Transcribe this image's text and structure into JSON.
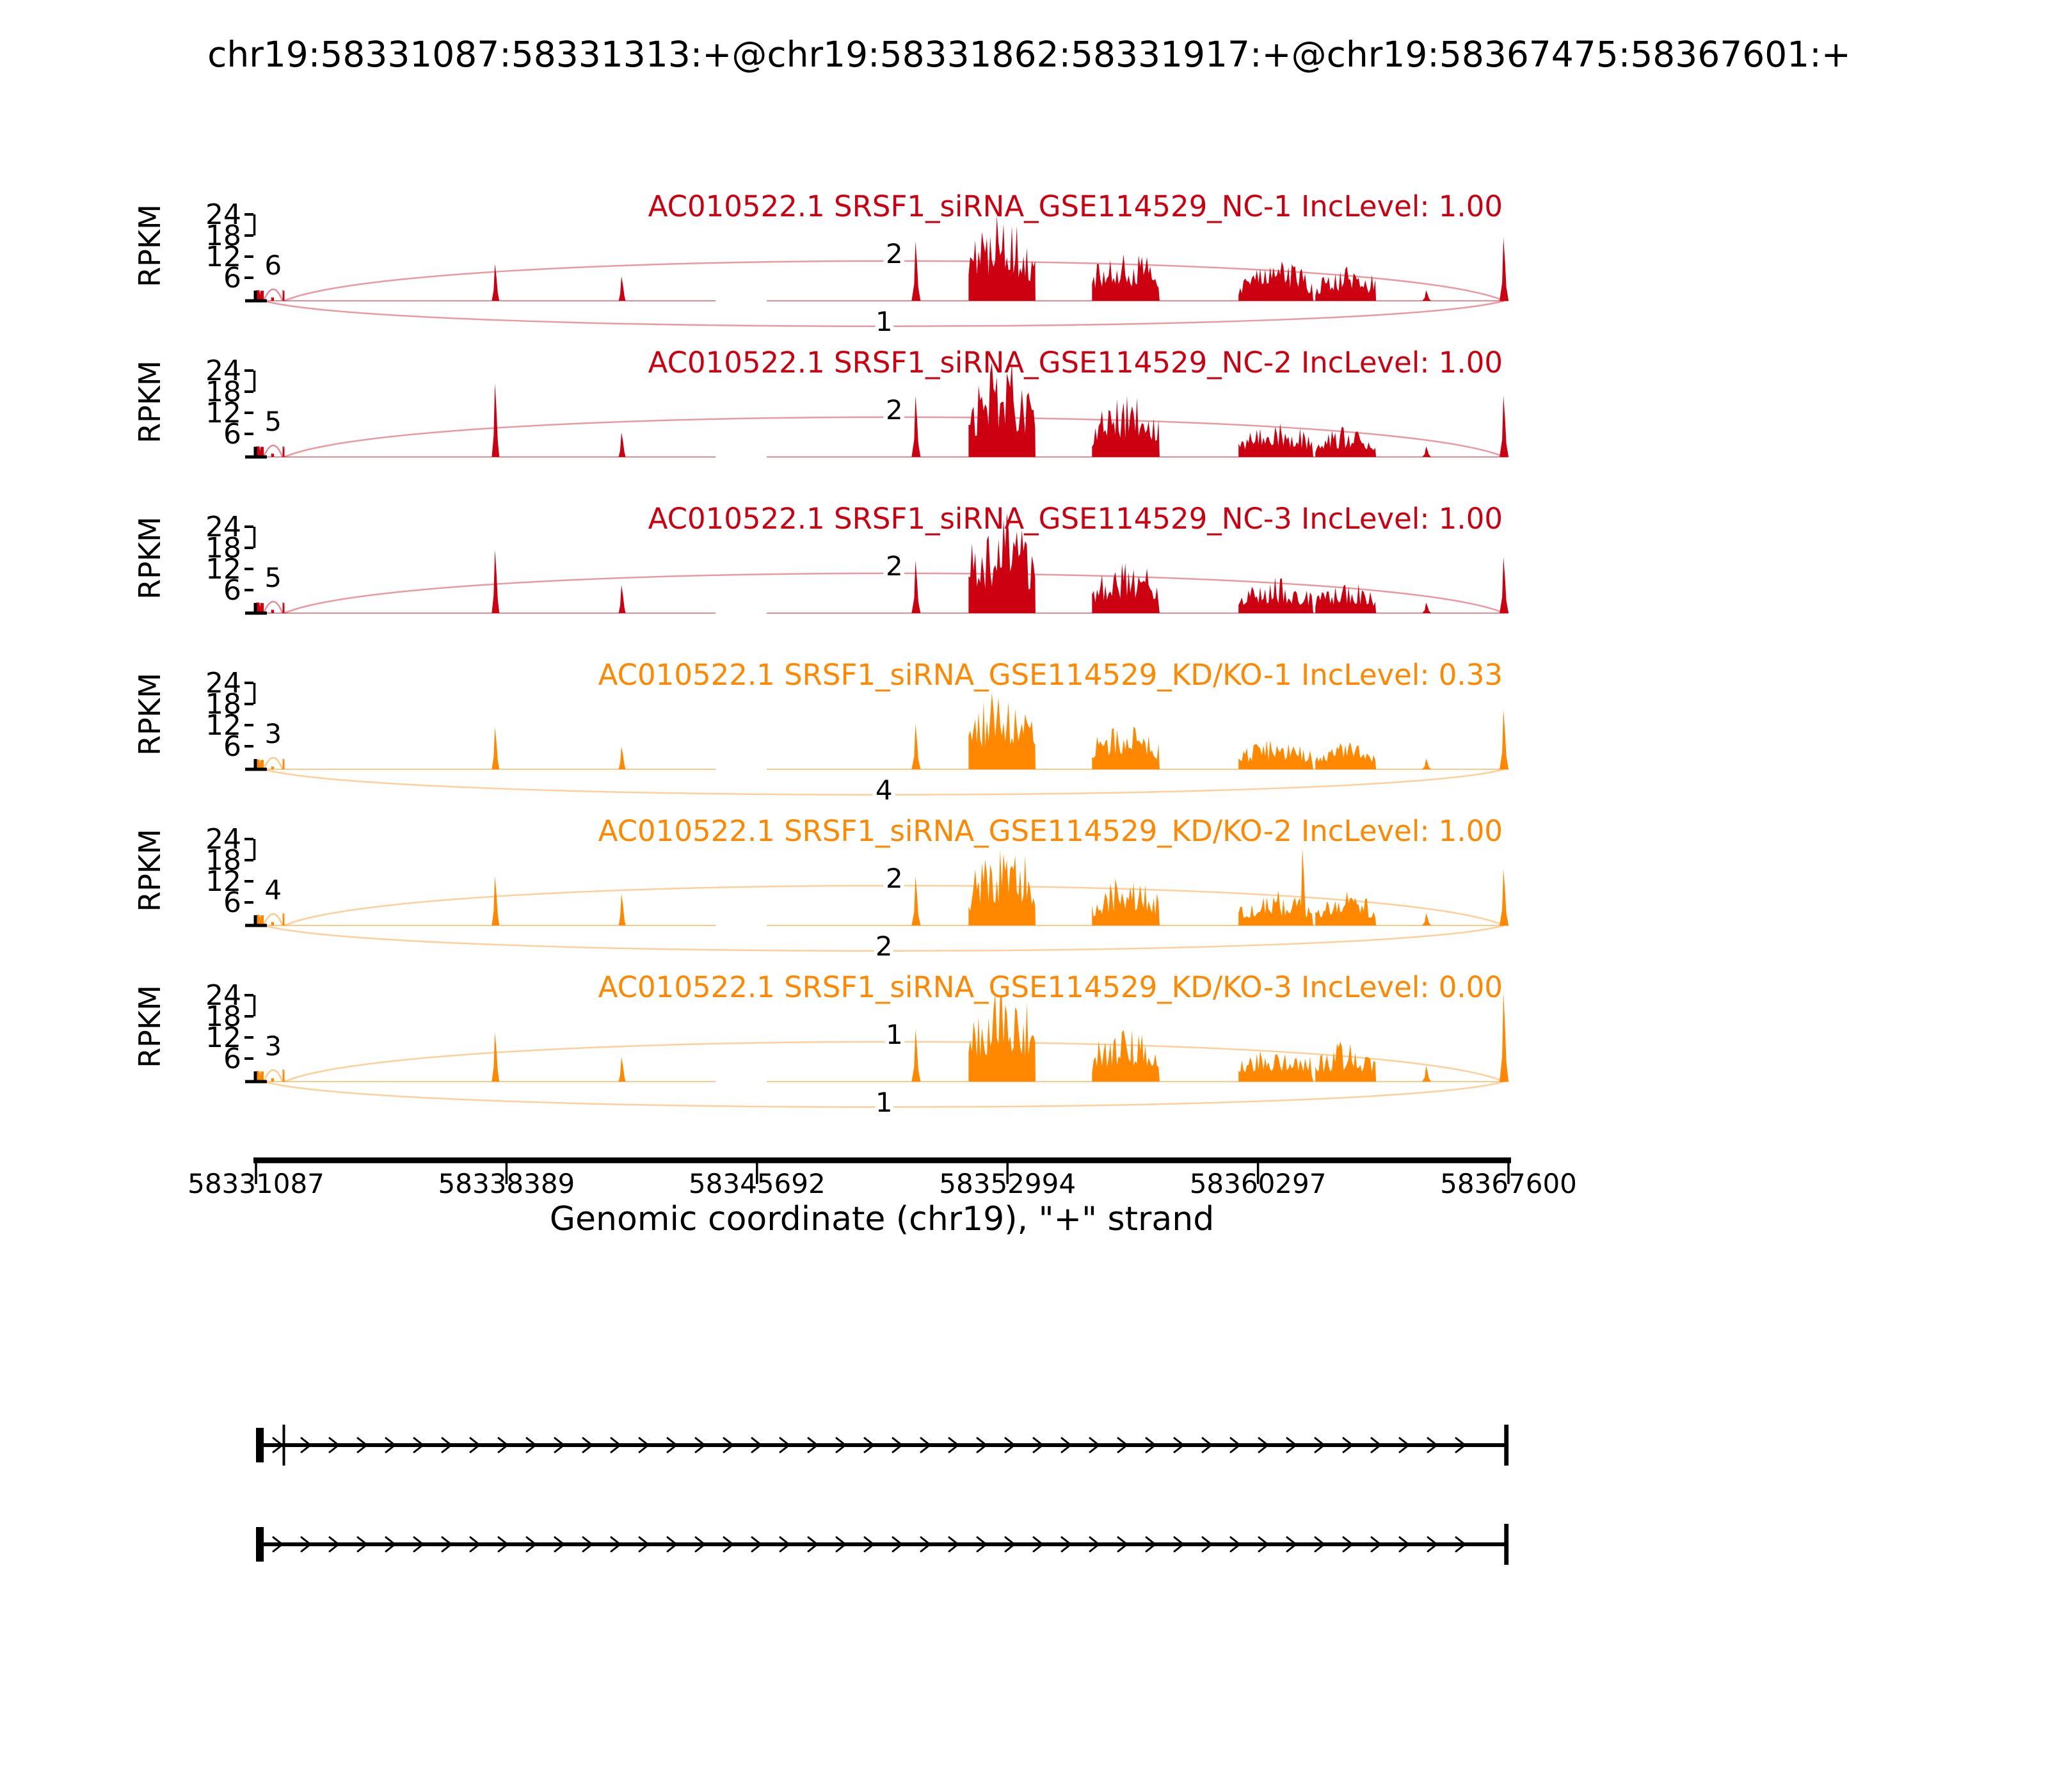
{
  "figure": {
    "title": "chr19:58331087:58331313:+@chr19:58331862:58331917:+@chr19:58367475:58367601:+",
    "xlabel": "Genomic coordinate (chr19), \"+\" strand",
    "ylabel": "RPKM",
    "background": "#ffffff",
    "colors": {
      "nc_group": "#CC0011",
      "kd_group": "#FF8800",
      "axis": "#000000",
      "junction_label": "#000000"
    }
  },
  "chart_data": {
    "type": "sashimi (RNA-seq coverage area + splice junction arcs)",
    "x_axis": {
      "label": "Genomic coordinate (chr19), \"+\" strand",
      "range": [
        58331087,
        58367600
      ],
      "ticks": [
        58331087,
        58338389,
        58345692,
        58352994,
        58360297,
        58367600
      ]
    },
    "y_axis": {
      "label": "RPKM",
      "ticks": [
        6,
        12,
        18,
        24
      ],
      "per_track": true
    },
    "event": {
      "chrom": "chr19",
      "strand": "+",
      "upstream_exon": [
        58331087,
        58331313
      ],
      "skipped_exon": [
        58331862,
        58331917
      ],
      "downstream_exon": [
        58367475,
        58367601
      ]
    },
    "coverage_regions": [
      {
        "id": "upstream_exon",
        "kind": "block",
        "g": [
          58331087,
          58331313
        ]
      },
      {
        "id": "inter_dot",
        "kind": "block",
        "g": [
          58331530,
          58331610
        ]
      },
      {
        "id": "skipped_exon",
        "kind": "block",
        "g": [
          58331862,
          58331917
        ]
      },
      {
        "id": "intron_peak_1",
        "kind": "spike",
        "g": [
          58337960,
          58338180
        ]
      },
      {
        "id": "intron_peak_2",
        "kind": "spike",
        "g": [
          58341660,
          58341860
        ]
      },
      {
        "id": "pre_cluster_spike",
        "kind": "spike",
        "g": [
          58350200,
          58350460
        ]
      },
      {
        "id": "exon_cluster_1",
        "kind": "cluster",
        "g": [
          58351860,
          58353810
        ]
      },
      {
        "id": "exon_cluster_2",
        "kind": "cluster",
        "g": [
          58355460,
          58357430
        ]
      },
      {
        "id": "exon_cluster_3",
        "kind": "cluster",
        "g": [
          58359730,
          58361910
        ]
      },
      {
        "id": "tall_spike_kd2",
        "kind": "spike",
        "g": [
          58361500,
          58361720
        ]
      },
      {
        "id": "exon_cluster_4",
        "kind": "cluster",
        "g": [
          58361970,
          58363740
        ]
      },
      {
        "id": "small_peak",
        "kind": "spike",
        "g": [
          58365085,
          58365345
        ]
      },
      {
        "id": "downstream_exon",
        "kind": "spike",
        "g": [
          58367340,
          58367601
        ]
      }
    ],
    "tracks": [
      {
        "id": "nc-1",
        "color_group": "nc_group",
        "title": "AC010522.1 SRSF1_siRNA_GSE114529_NC-1 IncLevel: 1.00",
        "gene": "AC010522.1",
        "sample": "SRSF1_siRNA_GSE114529_NC-1",
        "inc_level": "1.00",
        "heights_rpkm": [
          3,
          1,
          3,
          10.5,
          7,
          17,
          22,
          13.5,
          10,
          0,
          9,
          3,
          18
        ],
        "junctions": {
          "upstream_to_skipped": 6,
          "skipped_to_downstream": 2,
          "skipping": 1
        }
      },
      {
        "id": "nc-2",
        "color_group": "nc_group",
        "title": "AC010522.1 SRSF1_siRNA_GSE114529_NC-2 IncLevel: 1.00",
        "gene": "AC010522.1",
        "sample": "SRSF1_siRNA_GSE114529_NC-2",
        "inc_level": "1.00",
        "heights_rpkm": [
          3,
          1,
          3,
          21,
          7,
          17.5,
          25,
          17.5,
          9,
          0,
          8,
          3,
          17.5
        ],
        "junctions": {
          "upstream_to_skipped": 5,
          "skipped_to_downstream": 2,
          "skipping": null
        }
      },
      {
        "id": "nc-3",
        "color_group": "nc_group",
        "title": "AC010522.1 SRSF1_siRNA_GSE114529_NC-3 IncLevel: 1.00",
        "gene": "AC010522.1",
        "sample": "SRSF1_siRNA_GSE114529_NC-3",
        "inc_level": "1.00",
        "heights_rpkm": [
          3,
          1,
          3,
          18,
          8,
          15,
          25,
          14,
          9,
          0,
          8,
          3,
          16
        ],
        "junctions": {
          "upstream_to_skipped": 5,
          "skipped_to_downstream": 2,
          "skipping": null
        }
      },
      {
        "id": "kd-ko-1",
        "color_group": "kd_group",
        "title": "AC010522.1 SRSF1_siRNA_GSE114529_KD/KO-1 IncLevel: 0.33",
        "gene": "AC010522.1",
        "sample": "SRSF1_siRNA_GSE114529_KD/KO-1",
        "inc_level": "0.33",
        "heights_rpkm": [
          2.8,
          0.8,
          3,
          12,
          6.5,
          13,
          20.5,
          13,
          8,
          0,
          8,
          3,
          17
        ],
        "junctions": {
          "upstream_to_skipped": 3,
          "skipped_to_downstream": null,
          "skipping": 4
        }
      },
      {
        "id": "kd-ko-2",
        "color_group": "kd_group",
        "title": "AC010522.1 SRSF1_siRNA_GSE114529_KD/KO-2 IncLevel: 1.00",
        "gene": "AC010522.1",
        "sample": "SRSF1_siRNA_GSE114529_KD/KO-2",
        "inc_level": "1.00",
        "heights_rpkm": [
          3,
          1,
          3.5,
          14,
          9,
          14,
          21,
          13,
          9,
          22,
          9,
          3.5,
          16
        ],
        "junctions": {
          "upstream_to_skipped": 4,
          "skipped_to_downstream": 2,
          "skipping": 2
        }
      },
      {
        "id": "kd-ko-3",
        "color_group": "kd_group",
        "title": "AC010522.1 SRSF1_siRNA_GSE114529_KD/KO-3 IncLevel: 0.00",
        "gene": "AC010522.1",
        "sample": "SRSF1_siRNA_GSE114529_KD/KO-3",
        "inc_level": "0.00",
        "heights_rpkm": [
          3,
          1,
          3.5,
          14,
          7,
          15,
          26.5,
          15,
          9.5,
          0,
          10,
          4.5,
          25.5
        ],
        "junctions": {
          "upstream_to_skipped": 3,
          "skipped_to_downstream": 1,
          "skipping": 1
        }
      }
    ],
    "isoforms": [
      {
        "id": "inclusion",
        "exons": [
          [
            58331087,
            58331313
          ],
          [
            58331862,
            58331917
          ],
          [
            58367475,
            58367601
          ]
        ]
      },
      {
        "id": "skipping",
        "exons": [
          [
            58331087,
            58331313
          ],
          [
            58367475,
            58367601
          ]
        ]
      }
    ]
  }
}
